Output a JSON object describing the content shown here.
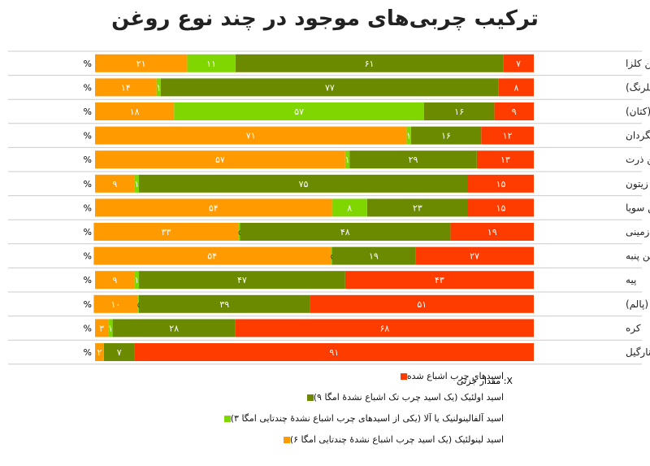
{
  "title": "ترکیب چربی‌های موجود در چند نوع روغن",
  "percent_suffix": "%",
  "note": "X: مقدار جزئی",
  "colors": {
    "saturated": "#ff3c00",
    "oleic": "#6b8a00",
    "alpha_linolenic": "#7fd600",
    "linoleic": "#ff9a00",
    "grid": "#cccccc"
  },
  "legend": [
    {
      "key": "saturated",
      "label": "اسیدهای چرب اشباع شده"
    },
    {
      "key": "oleic",
      "label": "اسید اولئیک (یک اسید چرب تک اشباع نشدهٔ امگا ۹)"
    },
    {
      "key": "alpha_linolenic",
      "label": "اسید آلفالینولنیک یا آلا (یکی از اسیدهای چرب اشباع نشدهٔ چندتایی امگا ۳)"
    },
    {
      "key": "linoleic",
      "label": "اسید لینولئیک (یک اسید چرب اشباع نشدهٔ چندتایی امگا ۶)"
    }
  ],
  "chart_data": {
    "type": "bar",
    "orientation": "horizontal",
    "stacked": true,
    "title": "ترکیب چربی‌های موجود در چند نوع روغن",
    "xlim": [
      0,
      100
    ],
    "categories": [
      "روغن کلزا",
      "روغن کافشه -گلرنگ)",
      "روغن بزرک (کتان)",
      "روغن آفتابگردان",
      "روغن ذرت",
      "روغن زیتون",
      "روغن سویا",
      "روغن بادام زمینی",
      "روغن پنبه",
      "پیه",
      "روغن نخل (پالم)",
      "کره",
      "روغن نارگیل"
    ],
    "series": [
      {
        "key": "saturated",
        "name": "اسیدهای چرب اشباع شده",
        "values": [
          7,
          8,
          9,
          12,
          13,
          15,
          15,
          19,
          27,
          43,
          51,
          68,
          91
        ],
        "labels": [
          "۷",
          "۸",
          "۹",
          "۱۲",
          "۱۳",
          "۱۵",
          "۱۵",
          "۱۹",
          "۲۷",
          "۴۳",
          "۵۱",
          "۶۸",
          "۹۱"
        ]
      },
      {
        "key": "oleic",
        "name": "اسید اولئیک (یک اسید چرب تک اشباع نشدهٔ امگا ۹)",
        "values": [
          61,
          77,
          16,
          16,
          29,
          75,
          23,
          48,
          19,
          47,
          39,
          28,
          7
        ],
        "labels": [
          "۶۱",
          "۷۷",
          "۱۶",
          "۱۶",
          "۲۹",
          "۷۵",
          "۲۳",
          "۴۸",
          "۱۹",
          "۴۷",
          "۳۹",
          "۲۸",
          "۷"
        ]
      },
      {
        "key": "alpha_linolenic",
        "name": "اسید آلفالینولنیک یا آلا (یکی از اسیدهای چرب اشباع نشدهٔ چندتایی امگا ۳)",
        "values": [
          11,
          1,
          57,
          1,
          1,
          1,
          8,
          0.3,
          0.3,
          1,
          0.3,
          1,
          0
        ],
        "labels": [
          "۱۱",
          "۱",
          "۵۷",
          "۱",
          "۱",
          "۱",
          "۸",
          "x",
          "x",
          "۱",
          "x",
          "۱",
          ""
        ]
      },
      {
        "key": "linoleic",
        "name": "اسید لینولئیک (یک اسید چرب اشباع نشدهٔ چندتایی امگا ۶)",
        "values": [
          21,
          14,
          18,
          71,
          57,
          9,
          54,
          33,
          54,
          9,
          10,
          3,
          2
        ],
        "labels": [
          "۲۱",
          "۱۴",
          "۱۸",
          "۷۱",
          "۵۷",
          "۹",
          "۵۴",
          "۳۳",
          "۵۴",
          "۹",
          "۱۰",
          "۳",
          "۲"
        ]
      }
    ]
  }
}
